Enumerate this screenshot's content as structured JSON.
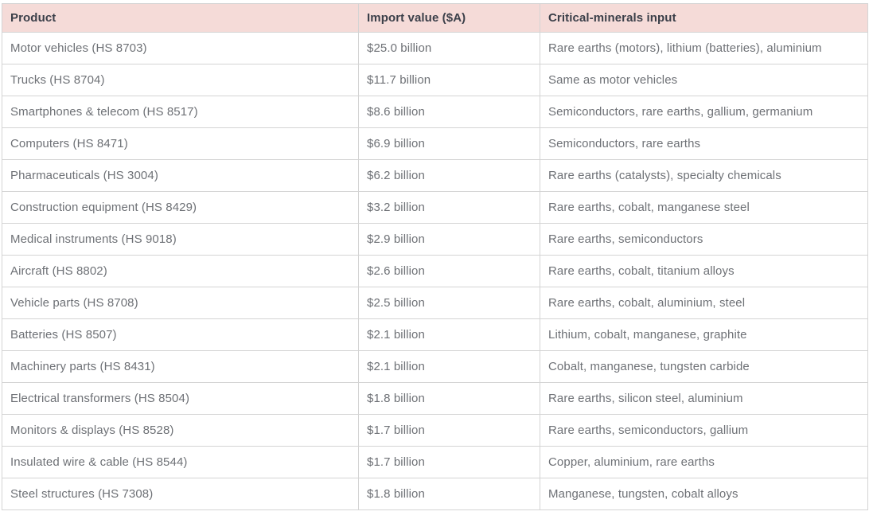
{
  "chart_data": {
    "type": "table",
    "columns": [
      "Product",
      "Import value ($A)",
      "Critical-minerals input"
    ],
    "rows": [
      [
        "Motor vehicles (HS 8703)",
        "$25.0 billion",
        "Rare earths (motors), lithium (batteries), aluminium"
      ],
      [
        "Trucks (HS 8704)",
        "$11.7 billion",
        "Same as motor vehicles"
      ],
      [
        "Smartphones & telecom (HS 8517)",
        "$8.6 billion",
        "Semiconductors, rare earths, gallium, germanium"
      ],
      [
        "Computers (HS 8471)",
        "$6.9 billion",
        "Semiconductors, rare earths"
      ],
      [
        "Pharmaceuticals (HS 3004)",
        "$6.2 billion",
        "Rare earths (catalysts), specialty chemicals"
      ],
      [
        "Construction equipment (HS 8429)",
        "$3.2 billion",
        "Rare earths, cobalt, manganese steel"
      ],
      [
        "Medical instruments (HS 9018)",
        "$2.9 billion",
        "Rare earths, semiconductors"
      ],
      [
        "Aircraft (HS 8802)",
        "$2.6 billion",
        "Rare earths, cobalt, titanium alloys"
      ],
      [
        "Vehicle parts (HS 8708)",
        "$2.5 billion",
        "Rare earths, cobalt, aluminium, steel"
      ],
      [
        "Batteries (HS 8507)",
        "$2.1 billion",
        "Lithium, cobalt, manganese, graphite"
      ],
      [
        "Machinery parts (HS 8431)",
        "$2.1 billion",
        "Cobalt, manganese, tungsten carbide"
      ],
      [
        "Electrical transformers (HS 8504)",
        "$1.8 billion",
        "Rare earths, silicon steel, aluminium"
      ],
      [
        "Monitors & displays (HS 8528)",
        "$1.7 billion",
        "Rare earths, semiconductors, gallium"
      ],
      [
        "Insulated wire & cable (HS 8544)",
        "$1.7 billion",
        "Copper, aluminium, rare earths"
      ],
      [
        "Steel structures (HS 7308)",
        "$1.8 billion",
        "Manganese, tungsten, cobalt alloys"
      ]
    ],
    "title": "",
    "layout": {
      "grid": true,
      "header_position": "top"
    }
  },
  "colors": {
    "header_bg": "#f5dbd8",
    "header_text": "#3b3f49",
    "body_text": "#6e7176",
    "border": "#d4d4d4",
    "row_bg": "#ffffff"
  }
}
